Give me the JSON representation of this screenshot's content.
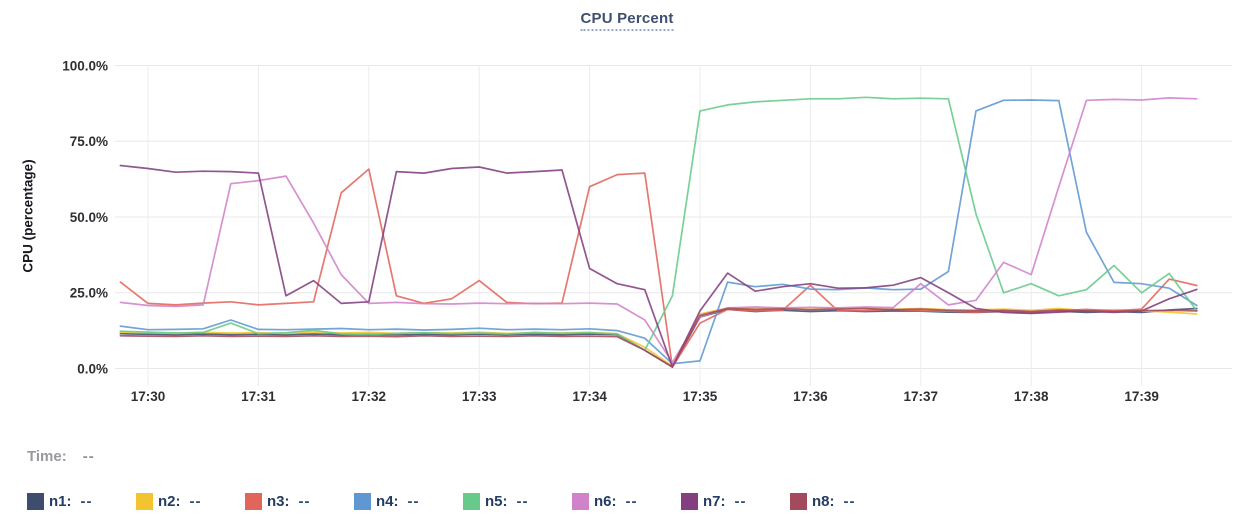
{
  "title": {
    "text": "CPU Percent"
  },
  "axes": {
    "y_label": "CPU (percentage)"
  },
  "legend": {
    "time_label": "Time:",
    "time_value": "--",
    "value_placeholder": "--"
  },
  "chart_data": {
    "type": "line",
    "title": "CPU Percent",
    "xlabel": "",
    "ylabel": "CPU (percentage)",
    "ylim": [
      0,
      100
    ],
    "grid": true,
    "legend_position": "bottom",
    "x_unit": "decimal minutes after 17:00",
    "x_range": [
      29.75,
      39.5
    ],
    "x_tick_minutes": [
      30,
      31,
      32,
      33,
      34,
      35,
      36,
      37,
      38,
      39
    ],
    "x_tick_labels": [
      "17:30",
      "17:31",
      "17:32",
      "17:33",
      "17:34",
      "17:35",
      "17:36",
      "17:37",
      "17:38",
      "17:39"
    ],
    "y_tick_values": [
      0,
      25,
      50,
      75,
      100
    ],
    "y_tick_labels": [
      "0.0%",
      "25.0%",
      "50.0%",
      "75.0%",
      "100.0%"
    ],
    "x_minutes": [
      29.75,
      30,
      30.25,
      30.5,
      30.75,
      31,
      31.25,
      31.5,
      31.75,
      32,
      32.25,
      32.5,
      32.75,
      33,
      33.25,
      33.5,
      33.75,
      34,
      34.25,
      34.5,
      34.75,
      35,
      35.25,
      35.5,
      35.75,
      36,
      36.25,
      36.5,
      36.75,
      37,
      37.25,
      37.5,
      37.75,
      38,
      38.25,
      38.5,
      38.75,
      39,
      39.25,
      39.5
    ],
    "series": [
      {
        "name": "n1",
        "color": "#3e4d6b",
        "values": [
          11.5,
          11.3,
          11.2,
          11.4,
          11.2,
          11.3,
          11.2,
          11.4,
          11.2,
          11.3,
          11.1,
          11.3,
          11.2,
          11.4,
          11.2,
          11.3,
          11.2,
          11.4,
          11.2,
          6,
          0.5,
          17,
          19.5,
          18.8,
          19.2,
          18.8,
          19.1,
          18.8,
          19,
          18.9,
          18.6,
          18.5,
          18.8,
          18.4,
          18.9,
          18.5,
          18.8,
          18.5,
          19.3,
          19.8
        ]
      },
      {
        "name": "n2",
        "color": "#f2c530",
        "values": [
          12,
          11.8,
          11.6,
          11.9,
          11.7,
          11.8,
          11.6,
          12,
          11.7,
          11.9,
          11.6,
          11.8,
          11.7,
          11.9,
          11.6,
          11.8,
          11.7,
          11.9,
          11.5,
          7,
          0.8,
          18,
          20,
          19.6,
          19.9,
          19.5,
          20,
          19.7,
          19.5,
          19.8,
          19.4,
          19.3,
          19.6,
          19.2,
          19.8,
          19.1,
          19.4,
          19,
          18.6,
          18
        ]
      },
      {
        "name": "n3",
        "color": "#e2655b",
        "values": [
          28.5,
          21.5,
          21,
          21.6,
          22,
          21,
          21.5,
          22,
          58,
          65.8,
          24,
          21.5,
          23,
          29,
          21.8,
          21.4,
          21.6,
          60,
          64,
          64.5,
          0.5,
          15,
          19.5,
          19,
          19.2,
          27.5,
          19,
          19.1,
          19.5,
          19,
          18.9,
          18.6,
          19,
          18.5,
          19,
          19.5,
          19,
          19.6,
          29.5,
          27.4
        ]
      },
      {
        "name": "n4",
        "color": "#5f97d2",
        "values": [
          14,
          12.8,
          12.9,
          13.1,
          16,
          12.9,
          12.8,
          13,
          13.2,
          12.8,
          13,
          12.7,
          12.9,
          13.3,
          12.8,
          13,
          12.8,
          13.1,
          12.5,
          10,
          1.6,
          2.5,
          28.5,
          27,
          27.8,
          26.2,
          26,
          26.6,
          26,
          26.2,
          32,
          85,
          88.5,
          88.6,
          88.4,
          45,
          28.4,
          28,
          26.5,
          20.8
        ]
      },
      {
        "name": "n5",
        "color": "#68ca8a",
        "values": [
          12.3,
          12,
          11.7,
          11.9,
          15,
          11.5,
          11.8,
          12.6,
          11.4,
          11.2,
          11.6,
          11.8,
          11.5,
          11.7,
          11.4,
          11.9,
          11.6,
          11.8,
          11.4,
          6,
          24,
          85,
          87,
          88,
          88.5,
          89,
          89,
          89.5,
          89,
          89.2,
          89,
          51,
          25,
          28,
          24,
          26,
          34,
          25,
          31.4,
          19
        ]
      },
      {
        "name": "n6",
        "color": "#d083ca",
        "values": [
          21.8,
          20.8,
          20.5,
          21,
          61,
          62,
          63.5,
          48,
          31,
          21.5,
          21.8,
          21.4,
          21.3,
          21.6,
          21.4,
          21.5,
          21.4,
          21.6,
          21.3,
          16,
          2,
          17,
          20,
          20.3,
          20,
          20.2,
          20,
          20.3,
          20.1,
          28,
          21,
          22.5,
          35,
          31,
          60,
          88.5,
          88.8,
          88.6,
          89.3,
          89
        ]
      },
      {
        "name": "n7",
        "color": "#833f80",
        "values": [
          67,
          66,
          64.8,
          65.1,
          65,
          64.5,
          24,
          29,
          21.5,
          22,
          65,
          64.5,
          66,
          66.5,
          64.5,
          65,
          65.5,
          33,
          28,
          26,
          0.5,
          19,
          31.5,
          25.5,
          27,
          28,
          26.5,
          26.6,
          27.5,
          30,
          25,
          19.8,
          18.5,
          18.2,
          18.6,
          19,
          18.5,
          19,
          23,
          26.1
        ]
      },
      {
        "name": "n8",
        "color": "#a44a5d",
        "values": [
          10.8,
          10.7,
          10.6,
          10.8,
          10.6,
          10.7,
          10.6,
          10.8,
          10.6,
          10.7,
          10.5,
          10.8,
          10.6,
          10.7,
          10.6,
          10.8,
          10.6,
          10.7,
          10.5,
          6,
          0.5,
          17.5,
          19.8,
          19.5,
          19.7,
          19.4,
          19.6,
          19.8,
          19.4,
          19.6,
          19.2,
          19,
          19.2,
          18.8,
          19.3,
          19,
          18.8,
          19.1,
          19.2,
          19
        ]
      }
    ]
  }
}
